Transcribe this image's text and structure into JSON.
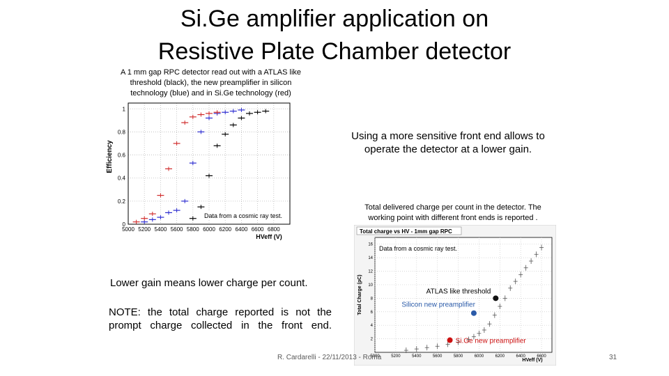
{
  "slide": {
    "title_line1": "Si.Ge amplifier application on",
    "title_line2": "Resistive Plate Chamber detector",
    "caption_left": "A 1 mm gap RPC detector read out with a ATLAS like threshold (black), the new preamplifier in silicon technology (blue) and in Si.Ge technology (red)",
    "text_sensitive": "Using a more sensitive front end allows to operate the detector at a lower gain.",
    "caption_right": "Total delivered charge per count in the detector. The working point with different front ends is reported .",
    "text_lower_gain": "Lower gain means lower charge per count.",
    "text_note": "NOTE: the total charge reported is not the prompt charge collected in the front end.",
    "footer": "R. Cardarelli - 22/11/2013 - Roma",
    "page_number": "31"
  },
  "chart_data": [
    {
      "type": "scatter",
      "title": "",
      "xlabel": "HVeff (V)",
      "ylabel": "Efficiency",
      "xlim": [
        5000,
        7000
      ],
      "ylim": [
        0,
        1.05
      ],
      "xticks": [
        "5000",
        "5200",
        "5400",
        "5600",
        "5800",
        "6000",
        "6200",
        "6400",
        "6600",
        "6800"
      ],
      "yticks": [
        "0",
        "0.2",
        "0.4",
        "0.6",
        "0.8",
        "1"
      ],
      "annotation": "Data from a cosmic ray test.",
      "grid": true,
      "series": [
        {
          "color": "#000000",
          "x": [
            5800,
            5900,
            6000,
            6100,
            6200,
            6300,
            6400,
            6500,
            6600,
            6700
          ],
          "y": [
            0.05,
            0.15,
            0.42,
            0.68,
            0.78,
            0.86,
            0.92,
            0.96,
            0.97,
            0.98
          ]
        },
        {
          "color": "#2a2ad0",
          "x": [
            5200,
            5300,
            5400,
            5500,
            5600,
            5700,
            5800,
            5900,
            6000,
            6100,
            6200,
            6300,
            6400
          ],
          "y": [
            0.02,
            0.04,
            0.06,
            0.1,
            0.12,
            0.2,
            0.53,
            0.8,
            0.92,
            0.96,
            0.97,
            0.98,
            0.99
          ]
        },
        {
          "color": "#d02a2a",
          "x": [
            5100,
            5200,
            5300,
            5400,
            5500,
            5600,
            5700,
            5800,
            5900,
            6000,
            6100
          ],
          "y": [
            0.02,
            0.05,
            0.09,
            0.25,
            0.48,
            0.7,
            0.88,
            0.93,
            0.95,
            0.96,
            0.97
          ]
        }
      ]
    },
    {
      "type": "scatter",
      "title": "Total charge vs HV - 1mm gap RPC",
      "xlabel": "HVeff (V)",
      "ylabel": "Total Charge (pC)",
      "xlim": [
        5000,
        6700
      ],
      "ylim": [
        0,
        17
      ],
      "xticks": [
        "5000",
        "5200",
        "5400",
        "5600",
        "5800",
        "6000",
        "6200",
        "6400",
        "6600"
      ],
      "yticks": [
        "2",
        "4",
        "6",
        "8",
        "10",
        "12",
        "14",
        "16"
      ],
      "annotation": "Data from a cosmic ray test.",
      "grid": true,
      "series": [
        {
          "color": "#555555",
          "x": [
            5300,
            5400,
            5500,
            5600,
            5700,
            5800,
            5900,
            5950,
            6000,
            6050,
            6100,
            6150,
            6200,
            6250,
            6300,
            6350,
            6400,
            6450,
            6500,
            6550,
            6600
          ],
          "y": [
            0.3,
            0.5,
            0.7,
            0.9,
            1.2,
            1.5,
            1.9,
            2.3,
            2.8,
            3.3,
            4.2,
            5.5,
            6.8,
            8.0,
            9.5,
            10.5,
            11.5,
            12.5,
            13.5,
            14.5,
            15.5
          ]
        }
      ],
      "working_points": [
        {
          "label": "ATLAS like threshold",
          "x": 6160,
          "y": 8.0,
          "color": "#111111",
          "label_color": "#000000"
        },
        {
          "label": "Silicon new preamplifier",
          "x": 5950,
          "y": 5.8,
          "color": "#2a5aa8",
          "label_color": "#2a5aa8"
        },
        {
          "label": "Si.Ge new preamplifier",
          "x": 5720,
          "y": 1.8,
          "color": "#cc1111",
          "label_color": "#cc1111"
        }
      ]
    }
  ]
}
